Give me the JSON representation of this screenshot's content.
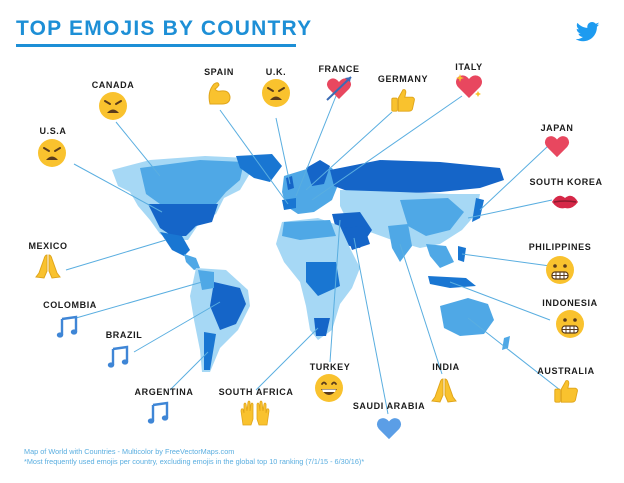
{
  "title": "TOP EMOJIS BY COUNTRY",
  "icons": {
    "brand": "twitter-bird-icon"
  },
  "colors": {
    "title": "#1d8fd6",
    "map_light": "#a6d8f5",
    "map_mid": "#4fa8e6",
    "map_dark": "#1565c8",
    "leader": "#5aaee0",
    "footer": "#5aaee0"
  },
  "countries": [
    {
      "id": "canada",
      "label": "CANADA",
      "emoji": "weary-face"
    },
    {
      "id": "spain",
      "label": "SPAIN",
      "emoji": "flexed-biceps"
    },
    {
      "id": "uk",
      "label": "U.K.",
      "emoji": "weary-face"
    },
    {
      "id": "france",
      "label": "FRANCE",
      "emoji": "heart-with-arrow"
    },
    {
      "id": "germany",
      "label": "GERMANY",
      "emoji": "thumbs-up"
    },
    {
      "id": "italy",
      "label": "ITALY",
      "emoji": "sparkling-heart"
    },
    {
      "id": "usa",
      "label": "U.S.A",
      "emoji": "weary-face"
    },
    {
      "id": "japan",
      "label": "JAPAN",
      "emoji": "heart"
    },
    {
      "id": "south-korea",
      "label": "SOUTH KOREA",
      "emoji": "kiss-mark"
    },
    {
      "id": "mexico",
      "label": "MEXICO",
      "emoji": "folded-hands"
    },
    {
      "id": "philippines",
      "label": "PHILIPPINES",
      "emoji": "grimacing-face"
    },
    {
      "id": "colombia",
      "label": "COLOMBIA",
      "emoji": "musical-notes"
    },
    {
      "id": "indonesia",
      "label": "INDONESIA",
      "emoji": "grimacing-face"
    },
    {
      "id": "brazil",
      "label": "BRAZIL",
      "emoji": "musical-notes"
    },
    {
      "id": "turkey",
      "label": "TURKEY",
      "emoji": "grinning-face"
    },
    {
      "id": "india",
      "label": "INDIA",
      "emoji": "folded-hands"
    },
    {
      "id": "australia",
      "label": "AUSTRALIA",
      "emoji": "thumbs-up"
    },
    {
      "id": "argentina",
      "label": "ARGENTINA",
      "emoji": "musical-notes"
    },
    {
      "id": "south-africa",
      "label": "SOUTH AFRICA",
      "emoji": "raising-hands"
    },
    {
      "id": "saudi-arabia",
      "label": "SAUDI ARABIA",
      "emoji": "blue-heart"
    }
  ],
  "footer": {
    "credit": "Map of World with Countries - Multicolor by FreeVectorMaps.com",
    "note": "*Most frequently used emojis per country, excluding emojis in the global top 10 ranking (7/1/15 - 6/30/16)*"
  }
}
